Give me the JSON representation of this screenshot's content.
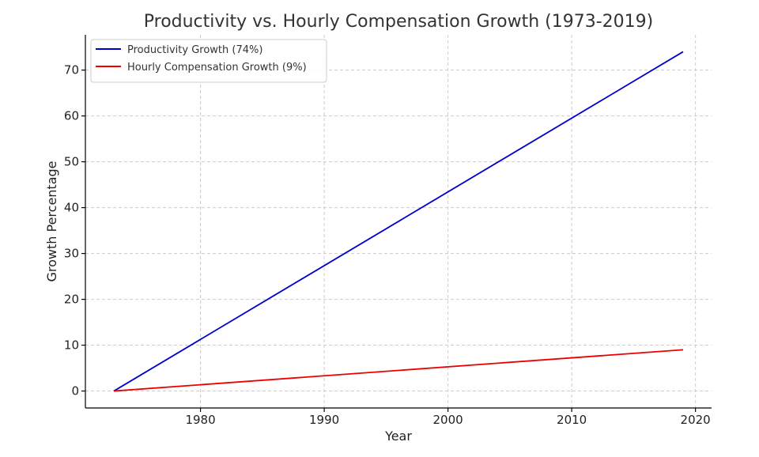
{
  "chart_data": {
    "type": "line",
    "title": "Productivity vs. Hourly Compensation Growth (1973-2019)",
    "xlabel": "Year",
    "ylabel": "Growth Percentage",
    "xlim": [
      1970.7,
      2021.3
    ],
    "ylim": [
      -3.7,
      77.7
    ],
    "xticks": [
      1980,
      1990,
      2000,
      2010,
      2020
    ],
    "yticks": [
      0,
      10,
      20,
      30,
      40,
      50,
      60,
      70
    ],
    "grid": true,
    "legend_position": "top-left",
    "series": [
      {
        "name": "Productivity Growth (74%)",
        "color": "#0000cc",
        "x": [
          1973,
          2019
        ],
        "y": [
          0,
          74
        ]
      },
      {
        "name": "Hourly Compensation Growth (9%)",
        "color": "#ee0000",
        "x": [
          1973,
          2019
        ],
        "y": [
          0,
          9
        ]
      }
    ]
  }
}
